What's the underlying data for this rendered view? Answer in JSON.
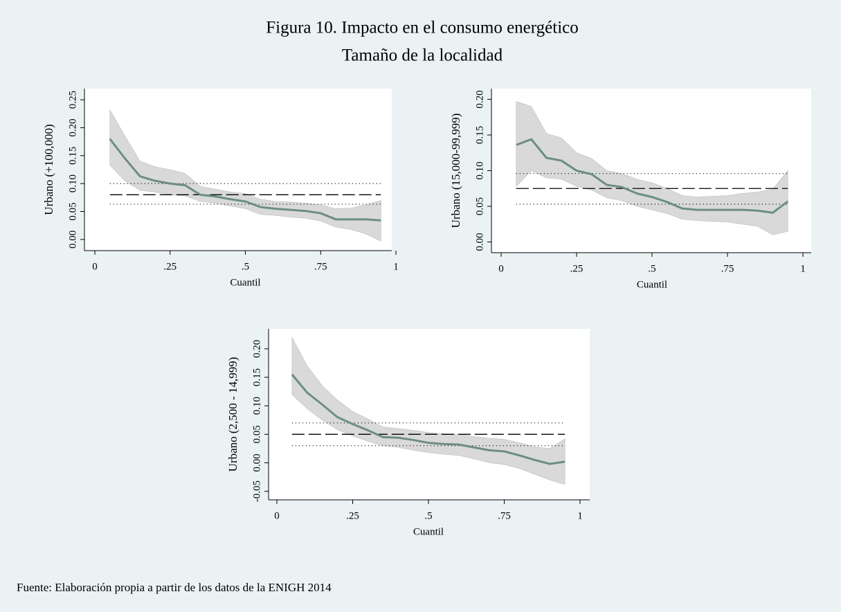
{
  "title": "Figura 10. Impacto en el consumo energético",
  "subtitle": "Tamaño de la localidad",
  "source": "Fuente: Elaboración propia a partir de los datos de la ENIGH 2014",
  "chart_data": [
    {
      "type": "line",
      "ylabel": "Urbano (+100,000)",
      "xlabel": "Cuantil",
      "x": [
        0.05,
        0.1,
        0.15,
        0.2,
        0.25,
        0.3,
        0.35,
        0.4,
        0.45,
        0.5,
        0.55,
        0.6,
        0.65,
        0.7,
        0.75,
        0.8,
        0.85,
        0.9,
        0.95
      ],
      "values": [
        0.18,
        0.145,
        0.113,
        0.105,
        0.1,
        0.097,
        0.08,
        0.077,
        0.072,
        0.068,
        0.058,
        0.055,
        0.053,
        0.051,
        0.047,
        0.036,
        0.036,
        0.036,
        0.034
      ],
      "ci_lower": [
        0.133,
        0.105,
        0.088,
        0.085,
        0.08,
        0.078,
        0.068,
        0.065,
        0.06,
        0.055,
        0.045,
        0.043,
        0.04,
        0.038,
        0.033,
        0.022,
        0.018,
        0.01,
        -0.003
      ],
      "ci_upper": [
        0.232,
        0.185,
        0.14,
        0.13,
        0.125,
        0.118,
        0.095,
        0.09,
        0.085,
        0.082,
        0.072,
        0.068,
        0.067,
        0.065,
        0.062,
        0.055,
        0.056,
        0.062,
        0.07
      ],
      "ols": 0.08,
      "ols_lower": 0.063,
      "ols_upper": 0.1,
      "color": "#6b8e80",
      "band_color": "#d9d9d9",
      "ols_color": "#000000",
      "xlim": [
        0,
        1
      ],
      "ylim": [
        -0.02,
        0.27
      ],
      "xticks": [
        0,
        {
          "value": 0.25,
          "label": ".25"
        },
        {
          "value": 0.5,
          "label": ".5"
        },
        {
          "value": 0.75,
          "label": ".75"
        },
        1
      ],
      "yticks": [
        {
          "value": 0,
          "label": "0.00"
        },
        {
          "value": 0.05,
          "label": "0.05"
        },
        {
          "value": 0.1,
          "label": "0.10"
        },
        {
          "value": 0.15,
          "label": "0.15"
        },
        {
          "value": 0.2,
          "label": "0.20"
        },
        {
          "value": 0.25,
          "label": "0.25"
        }
      ]
    },
    {
      "type": "line",
      "ylabel": "Urbano (15,000-99,999)",
      "xlabel": "Cuantil",
      "x": [
        0.05,
        0.1,
        0.15,
        0.2,
        0.25,
        0.3,
        0.35,
        0.4,
        0.45,
        0.5,
        0.55,
        0.6,
        0.65,
        0.7,
        0.75,
        0.8,
        0.85,
        0.9,
        0.95
      ],
      "values": [
        0.136,
        0.144,
        0.118,
        0.114,
        0.1,
        0.095,
        0.08,
        0.077,
        0.068,
        0.063,
        0.056,
        0.047,
        0.045,
        0.045,
        0.045,
        0.045,
        0.044,
        0.041,
        0.057
      ],
      "ci_lower": [
        0.078,
        0.1,
        0.09,
        0.088,
        0.078,
        0.073,
        0.062,
        0.058,
        0.05,
        0.045,
        0.04,
        0.032,
        0.03,
        0.029,
        0.028,
        0.025,
        0.022,
        0.01,
        0.015
      ],
      "ci_upper": [
        0.197,
        0.19,
        0.152,
        0.146,
        0.125,
        0.117,
        0.1,
        0.096,
        0.088,
        0.083,
        0.075,
        0.065,
        0.063,
        0.064,
        0.065,
        0.068,
        0.07,
        0.074,
        0.1
      ],
      "ols": 0.075,
      "ols_lower": 0.053,
      "ols_upper": 0.096,
      "color": "#6b8e80",
      "band_color": "#d9d9d9",
      "ols_color": "#000000",
      "xlim": [
        0,
        1
      ],
      "ylim": [
        -0.015,
        0.215
      ],
      "xticks": [
        0,
        {
          "value": 0.25,
          "label": ".25"
        },
        {
          "value": 0.5,
          "label": ".5"
        },
        {
          "value": 0.75,
          "label": ".75"
        },
        1
      ],
      "yticks": [
        {
          "value": 0,
          "label": "0.00"
        },
        {
          "value": 0.05,
          "label": "0.05"
        },
        {
          "value": 0.1,
          "label": "0.10"
        },
        {
          "value": 0.15,
          "label": "0.15"
        },
        {
          "value": 0.2,
          "label": "0.20"
        }
      ]
    },
    {
      "type": "line",
      "ylabel": "Urbano (2,500 - 14,999)",
      "xlabel": "Cuantil",
      "x": [
        0.05,
        0.1,
        0.15,
        0.2,
        0.25,
        0.3,
        0.35,
        0.4,
        0.45,
        0.5,
        0.55,
        0.6,
        0.65,
        0.7,
        0.75,
        0.8,
        0.85,
        0.9,
        0.95
      ],
      "values": [
        0.155,
        0.123,
        0.102,
        0.08,
        0.068,
        0.057,
        0.045,
        0.044,
        0.04,
        0.035,
        0.033,
        0.032,
        0.027,
        0.022,
        0.02,
        0.013,
        0.005,
        -0.002,
        0.002
      ],
      "ci_lower": [
        0.12,
        0.095,
        0.075,
        0.058,
        0.047,
        0.038,
        0.03,
        0.027,
        0.022,
        0.018,
        0.015,
        0.013,
        0.007,
        0.0,
        -0.003,
        -0.01,
        -0.02,
        -0.03,
        -0.038
      ],
      "ci_upper": [
        0.22,
        0.17,
        0.135,
        0.11,
        0.09,
        0.077,
        0.063,
        0.06,
        0.057,
        0.053,
        0.051,
        0.05,
        0.046,
        0.043,
        0.041,
        0.035,
        0.028,
        0.025,
        0.042
      ],
      "ols": 0.05,
      "ols_lower": 0.03,
      "ols_upper": 0.07,
      "color": "#6b8e80",
      "band_color": "#d9d9d9",
      "ols_color": "#000000",
      "xlim": [
        0,
        1
      ],
      "ylim": [
        -0.065,
        0.235
      ],
      "xticks": [
        0,
        {
          "value": 0.25,
          "label": ".25"
        },
        {
          "value": 0.5,
          "label": ".5"
        },
        {
          "value": 0.75,
          "label": ".75"
        },
        1
      ],
      "yticks": [
        {
          "value": -0.05,
          "label": "-0.05"
        },
        {
          "value": 0,
          "label": "0.00"
        },
        {
          "value": 0.05,
          "label": "0.05"
        },
        {
          "value": 0.1,
          "label": "0.10"
        },
        {
          "value": 0.15,
          "label": "0.15"
        },
        {
          "value": 0.2,
          "label": "0.20"
        }
      ]
    }
  ]
}
